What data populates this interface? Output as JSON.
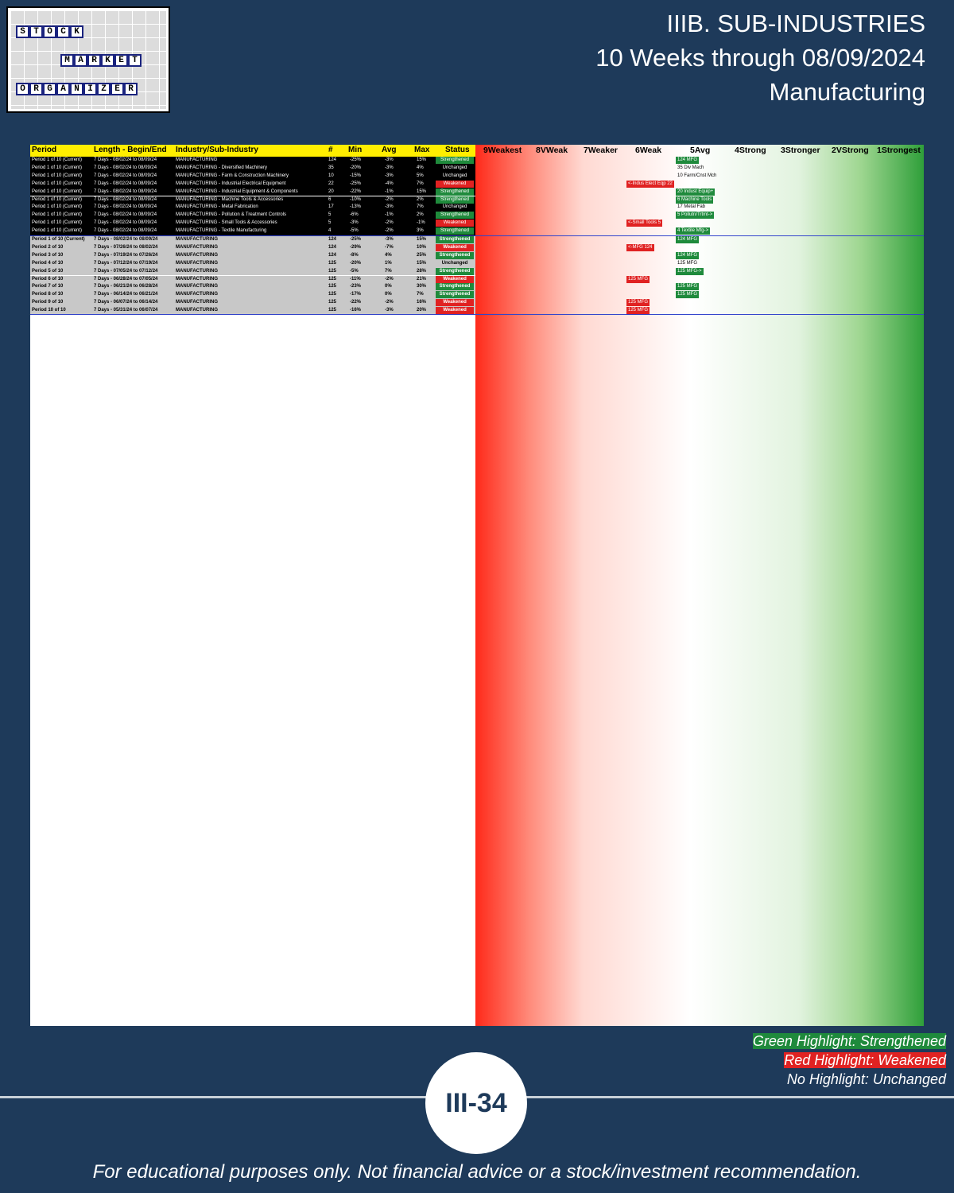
{
  "logo": {
    "row1": [
      "S",
      "T",
      "O",
      "C",
      "K"
    ],
    "row2": [
      "M",
      "A",
      "R",
      "K",
      "E",
      "T"
    ],
    "row3": [
      "O",
      "R",
      "G",
      "A",
      "N",
      "I",
      "Z",
      "E",
      "R"
    ]
  },
  "title": {
    "line1": "IIIB. SUB-INDUSTRIES",
    "line2": "10 Weeks through 08/09/2024",
    "line3": "Manufacturing"
  },
  "table": {
    "headers": {
      "period": "Period",
      "length": "Length - Begin/End",
      "industry": "Industry/Sub-Industry",
      "count": "#",
      "min": "Min",
      "avg": "Avg",
      "max": "Max",
      "status": "Status"
    },
    "scale": [
      "9Weakest",
      "8VWeak",
      "7Weaker",
      "6Weak",
      "5Avg",
      "4Strong",
      "3Stronger",
      "2VStrong",
      "1Strongest"
    ],
    "current_rows": [
      {
        "period": "Period 1 of 10 (Current)",
        "length": "7 Days - 08/02/24 to 08/09/24",
        "industry": "MANUFACTURING",
        "count": "124",
        "min": "-25%",
        "avg": "-3%",
        "max": "15%",
        "status": "Strengthened",
        "marker": "124 MFG"
      },
      {
        "period": "Period 1 of 10 (Current)",
        "length": "7 Days - 08/02/24 to 08/09/24",
        "industry": "MANUFACTURING - Diversified Machinery",
        "count": "35",
        "min": "-20%",
        "avg": "-3%",
        "max": "4%",
        "status": "Unchanged",
        "marker": "35 Div Mach"
      },
      {
        "period": "Period 1 of 10 (Current)",
        "length": "7 Days - 08/02/24 to 08/09/24",
        "industry": "MANUFACTURING - Farm & Construction Machinery",
        "count": "10",
        "min": "-15%",
        "avg": "-3%",
        "max": "5%",
        "status": "Unchanged",
        "marker": "10 Farm/Cnst Mch"
      },
      {
        "period": "Period 1 of 10 (Current)",
        "length": "7 Days - 08/02/24 to 08/09/24",
        "industry": "MANUFACTURING - Industrial Electrical Equipment",
        "count": "22",
        "min": "-25%",
        "avg": "-4%",
        "max": "7%",
        "status": "Weakened",
        "marker": "<-Indus Elect Eqp 22"
      },
      {
        "period": "Period 1 of 10 (Current)",
        "length": "7 Days - 08/02/24 to 08/09/24",
        "industry": "MANUFACTURING - Industrial Equipment & Components",
        "count": "20",
        "min": "-22%",
        "avg": "-1%",
        "max": "15%",
        "status": "Strengthened",
        "marker": "20 Indust Equip+"
      },
      {
        "period": "Period 1 of 10 (Current)",
        "length": "7 Days - 08/02/24 to 08/09/24",
        "industry": "MANUFACTURING - Machine Tools & Accessories",
        "count": "6",
        "min": "-10%",
        "avg": "-2%",
        "max": "2%",
        "status": "Strengthened",
        "marker": "6 Machine Tools"
      },
      {
        "period": "Period 1 of 10 (Current)",
        "length": "7 Days - 08/02/24 to 08/09/24",
        "industry": "MANUFACTURING - Metal Fabrication",
        "count": "17",
        "min": "-13%",
        "avg": "-3%",
        "max": "7%",
        "status": "Unchanged",
        "marker": "17 Metal Fab"
      },
      {
        "period": "Period 1 of 10 (Current)",
        "length": "7 Days - 08/02/24 to 08/09/24",
        "industry": "MANUFACTURING - Pollution & Treatment Controls",
        "count": "5",
        "min": "-6%",
        "avg": "-1%",
        "max": "2%",
        "status": "Strengthened",
        "marker": "5 Pollutn/Trtmt->"
      },
      {
        "period": "Period 1 of 10 (Current)",
        "length": "7 Days - 08/02/24 to 08/09/24",
        "industry": "MANUFACTURING - Small Tools & Accessories",
        "count": "5",
        "min": "-3%",
        "avg": "-2%",
        "max": "-1%",
        "status": "Weakened",
        "marker": "<-Small Tools 5"
      },
      {
        "period": "Period 1 of 10 (Current)",
        "length": "7 Days - 08/02/24 to 08/09/24",
        "industry": "MANUFACTURING - Textile Manufacturing",
        "count": "4",
        "min": "-5%",
        "avg": "-2%",
        "max": "3%",
        "status": "Strengthened",
        "marker": "4 Textile Mfg->"
      }
    ],
    "mfg_rows": [
      {
        "period": "Period 1 of 10 (Current)",
        "length": "7 Days - 08/02/24 to 08/09/24",
        "industry": "MANUFACTURING",
        "count": "124",
        "min": "-25%",
        "avg": "-3%",
        "max": "15%",
        "status": "Strengthened",
        "marker": "124 MFG"
      },
      {
        "period": "Period 2 of 10",
        "length": "7 Days - 07/26/24 to 08/02/24",
        "industry": "MANUFACTURING",
        "count": "124",
        "min": "-29%",
        "avg": "-7%",
        "max": "10%",
        "status": "Weakened",
        "marker": "<-MFG 124"
      },
      {
        "period": "Period 3 of 10",
        "length": "7 Days - 07/19/24 to 07/26/24",
        "industry": "MANUFACTURING",
        "count": "124",
        "min": "-8%",
        "avg": "4%",
        "max": "25%",
        "status": "Strengthened",
        "marker": "124 MFG"
      },
      {
        "period": "Period 4 of 10",
        "length": "7 Days - 07/12/24 to 07/19/24",
        "industry": "MANUFACTURING",
        "count": "125",
        "min": "-20%",
        "avg": "1%",
        "max": "15%",
        "status": "Unchanged",
        "marker": "125 MFG"
      },
      {
        "period": "Period 5 of 10",
        "length": "7 Days - 07/05/24 to 07/12/24",
        "industry": "MANUFACTURING",
        "count": "125",
        "min": "-5%",
        "avg": "7%",
        "max": "28%",
        "status": "Strengthened",
        "marker": "125 MFG->"
      },
      {
        "period": "Period 6 of 10",
        "length": "7 Days - 06/28/24 to 07/05/24",
        "industry": "MANUFACTURING",
        "count": "125",
        "min": "-11%",
        "avg": "-2%",
        "max": "21%",
        "status": "Weakened",
        "marker": "125 MFG"
      },
      {
        "period": "Period 7 of 10",
        "length": "7 Days - 06/21/24 to 06/28/24",
        "industry": "MANUFACTURING",
        "count": "125",
        "min": "-23%",
        "avg": "0%",
        "max": "30%",
        "status": "Strengthened",
        "marker": "125 MFG"
      },
      {
        "period": "Period 8 of 10",
        "length": "7 Days - 06/14/24 to 06/21/24",
        "industry": "MANUFACTURING",
        "count": "125",
        "min": "-17%",
        "avg": "0%",
        "max": "7%",
        "status": "Strengthened",
        "marker": "125 MFG"
      },
      {
        "period": "Period 9 of 10",
        "length": "7 Days - 06/07/24 to 06/14/24",
        "industry": "MANUFACTURING",
        "count": "125",
        "min": "-22%",
        "avg": "-2%",
        "max": "16%",
        "status": "Weakened",
        "marker": "125 MFG"
      },
      {
        "period": "Period 10 of 10",
        "length": "7 Days - 05/31/24 to 06/07/24",
        "industry": "MANUFACTURING",
        "count": "125",
        "min": "-16%",
        "avg": "-3%",
        "max": "20%",
        "status": "Weakened",
        "marker": "125 MFG"
      }
    ]
  },
  "legend": {
    "green": "Green Highlight: Strengthened",
    "red": "Red Highlight: Weakened",
    "none": "No Highlight: Unchanged"
  },
  "page_label": "III-34",
  "disclaimer": "For educational purposes only. Not financial advice or a stock/investment recommendation."
}
